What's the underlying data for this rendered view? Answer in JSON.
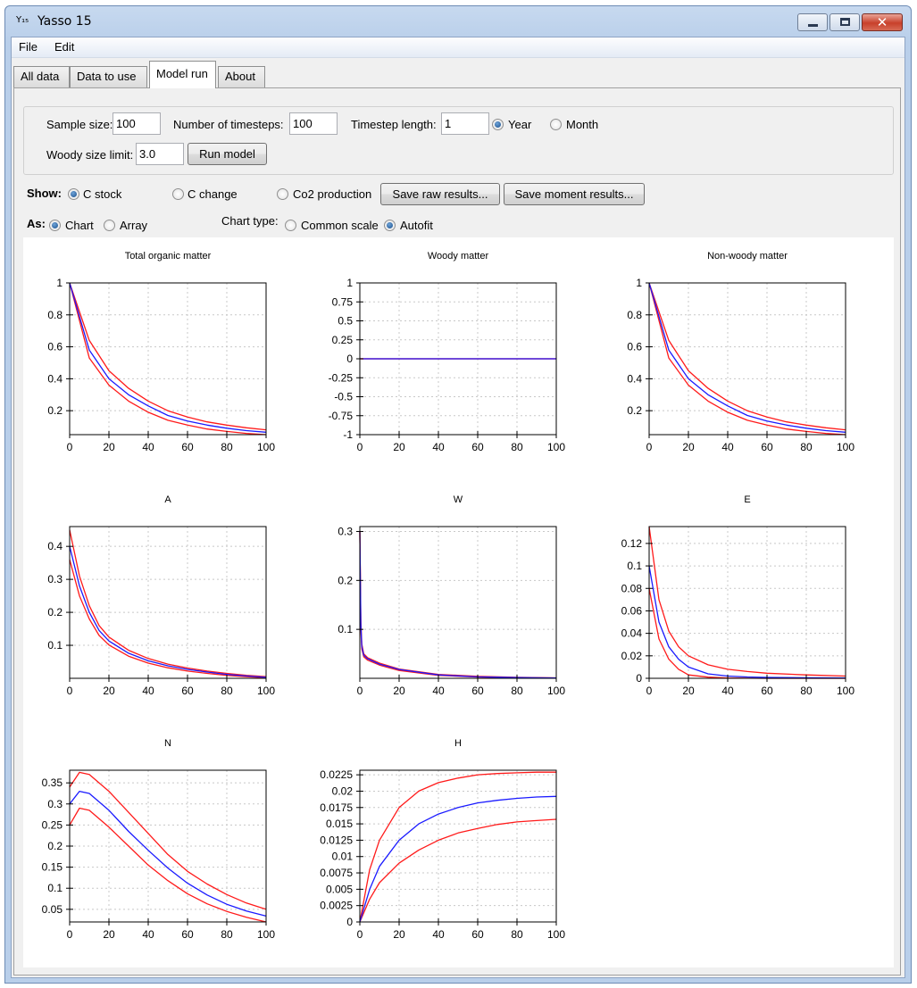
{
  "window": {
    "title": "Yasso 15",
    "app_icon_text": "Y₁₅"
  },
  "menu": [
    "File",
    "Edit"
  ],
  "tabs": [
    "All data",
    "Data to use",
    "Model run",
    "About"
  ],
  "active_tab": "Model run",
  "params": {
    "sample_size_label": "Sample size:",
    "sample_size": "100",
    "timesteps_label": "Number of timesteps:",
    "timesteps": "100",
    "timestep_length_label": "Timestep length:",
    "timestep_length": "1",
    "year_label": "Year",
    "month_label": "Month",
    "woody_label": "Woody size limit:",
    "woody": "3.0",
    "run_button": "Run model"
  },
  "show": {
    "label": "Show:",
    "c_stock": "C stock",
    "c_change": "C change",
    "co2": "Co2 production",
    "save_raw": "Save raw results...",
    "save_moment": "Save moment results..."
  },
  "as": {
    "label": "As:",
    "chart": "Chart",
    "array": "Array",
    "chart_type_label": "Chart type:",
    "common_scale": "Common scale",
    "autofit": "Autofit"
  },
  "colors": {
    "mean": "#1a1aff",
    "bounds": "#ff1a1a"
  },
  "chart_data": [
    {
      "type": "line",
      "title": "Total organic matter",
      "xlim": [
        0,
        100
      ],
      "xticks": [
        0,
        20,
        40,
        60,
        80,
        100
      ],
      "ylim": [
        0.05,
        1
      ],
      "yticks": [
        1,
        0.8,
        0.6,
        0.4,
        0.2
      ],
      "yticklabels": [
        "1",
        "0.8",
        "0.6",
        "0.4",
        "0.2"
      ],
      "x": [
        0,
        10,
        20,
        30,
        40,
        50,
        60,
        70,
        80,
        90,
        100
      ],
      "series": [
        {
          "role": "upper",
          "values": [
            1,
            0.64,
            0.45,
            0.34,
            0.26,
            0.2,
            0.16,
            0.13,
            0.11,
            0.093,
            0.08
          ]
        },
        {
          "role": "mean",
          "values": [
            1,
            0.58,
            0.4,
            0.3,
            0.23,
            0.17,
            0.135,
            0.11,
            0.09,
            0.075,
            0.065
          ]
        },
        {
          "role": "lower",
          "values": [
            1,
            0.53,
            0.36,
            0.26,
            0.19,
            0.14,
            0.11,
            0.085,
            0.07,
            0.058,
            0.05
          ]
        }
      ]
    },
    {
      "type": "line",
      "title": "Woody matter",
      "xlim": [
        0,
        100
      ],
      "xticks": [
        0,
        20,
        40,
        60,
        80,
        100
      ],
      "ylim": [
        -1,
        1
      ],
      "yticks": [
        1,
        0.75,
        0.5,
        0.25,
        0,
        -0.25,
        -0.5,
        -0.75,
        -1
      ],
      "yticklabels": [
        "1",
        "0.75",
        "0.5",
        "0.25",
        "0",
        "-0.25",
        "-0.5",
        "-0.75",
        "-1"
      ],
      "x": [
        0,
        100
      ],
      "series": [
        {
          "role": "upper",
          "values": [
            0,
            0
          ]
        },
        {
          "role": "mean",
          "values": [
            0,
            0
          ]
        },
        {
          "role": "lower",
          "values": [
            0,
            0
          ]
        }
      ]
    },
    {
      "type": "line",
      "title": "Non-woody matter",
      "xlim": [
        0,
        100
      ],
      "xticks": [
        0,
        20,
        40,
        60,
        80,
        100
      ],
      "ylim": [
        0.05,
        1
      ],
      "yticks": [
        1,
        0.8,
        0.6,
        0.4,
        0.2
      ],
      "yticklabels": [
        "1",
        "0.8",
        "0.6",
        "0.4",
        "0.2"
      ],
      "x": [
        0,
        10,
        20,
        30,
        40,
        50,
        60,
        70,
        80,
        90,
        100
      ],
      "series": [
        {
          "role": "upper",
          "values": [
            1,
            0.64,
            0.45,
            0.34,
            0.26,
            0.2,
            0.16,
            0.13,
            0.11,
            0.093,
            0.08
          ]
        },
        {
          "role": "mean",
          "values": [
            1,
            0.58,
            0.4,
            0.3,
            0.23,
            0.17,
            0.135,
            0.11,
            0.09,
            0.075,
            0.065
          ]
        },
        {
          "role": "lower",
          "values": [
            1,
            0.53,
            0.36,
            0.26,
            0.19,
            0.14,
            0.11,
            0.085,
            0.07,
            0.058,
            0.05
          ]
        }
      ]
    },
    {
      "type": "line",
      "title": "A",
      "xlim": [
        0,
        100
      ],
      "xticks": [
        0,
        20,
        40,
        60,
        80,
        100
      ],
      "ylim": [
        0,
        0.46
      ],
      "yticks": [
        0.4,
        0.3,
        0.2,
        0.1
      ],
      "yticklabels": [
        "0.4",
        "0.3",
        "0.2",
        "0.1"
      ],
      "x": [
        0,
        5,
        10,
        15,
        20,
        30,
        40,
        50,
        60,
        70,
        80,
        90,
        100
      ],
      "series": [
        {
          "role": "upper",
          "values": [
            0.45,
            0.31,
            0.22,
            0.16,
            0.125,
            0.085,
            0.06,
            0.043,
            0.031,
            0.022,
            0.015,
            0.009,
            0.005
          ]
        },
        {
          "role": "mean",
          "values": [
            0.4,
            0.28,
            0.2,
            0.145,
            0.113,
            0.076,
            0.053,
            0.038,
            0.027,
            0.019,
            0.012,
            0.007,
            0.003
          ]
        },
        {
          "role": "lower",
          "values": [
            0.36,
            0.25,
            0.18,
            0.13,
            0.101,
            0.067,
            0.046,
            0.032,
            0.022,
            0.015,
            0.009,
            0.005,
            0.002
          ]
        }
      ]
    },
    {
      "type": "line",
      "title": "W",
      "xlim": [
        0,
        100
      ],
      "xticks": [
        0,
        20,
        40,
        60,
        80,
        100
      ],
      "ylim": [
        0,
        0.31
      ],
      "yticks": [
        0.3,
        0.2,
        0.1
      ],
      "yticklabels": [
        "0.3",
        "0.2",
        "0.1"
      ],
      "x": [
        0,
        0.5,
        1,
        2,
        4,
        10,
        20,
        40,
        60,
        80,
        100
      ],
      "series": [
        {
          "role": "upper",
          "values": [
            0.3,
            0.12,
            0.07,
            0.05,
            0.042,
            0.031,
            0.019,
            0.008,
            0.004,
            0.002,
            0.001
          ]
        },
        {
          "role": "mean",
          "values": [
            0.3,
            0.11,
            0.065,
            0.047,
            0.04,
            0.029,
            0.018,
            0.007,
            0.003,
            0.0015,
            0.0008
          ]
        },
        {
          "role": "lower",
          "values": [
            0.3,
            0.1,
            0.06,
            0.044,
            0.037,
            0.027,
            0.016,
            0.006,
            0.0025,
            0.001,
            0.0005
          ]
        }
      ]
    },
    {
      "type": "line",
      "title": "E",
      "xlim": [
        0,
        100
      ],
      "xticks": [
        0,
        20,
        40,
        60,
        80,
        100
      ],
      "ylim": [
        0,
        0.135
      ],
      "yticks": [
        0.12,
        0.1,
        0.08,
        0.06,
        0.04,
        0.02,
        0
      ],
      "yticklabels": [
        "0.12",
        "0.1",
        "0.08",
        "0.06",
        "0.04",
        "0.02",
        "0"
      ],
      "x": [
        0,
        5,
        10,
        15,
        20,
        30,
        40,
        50,
        60,
        80,
        100
      ],
      "series": [
        {
          "role": "upper",
          "values": [
            0.135,
            0.07,
            0.042,
            0.028,
            0.02,
            0.012,
            0.008,
            0.006,
            0.0045,
            0.003,
            0.002
          ]
        },
        {
          "role": "mean",
          "values": [
            0.1,
            0.05,
            0.028,
            0.017,
            0.01,
            0.004,
            0.002,
            0.0012,
            0.0008,
            0.0005,
            0.0003
          ]
        },
        {
          "role": "lower",
          "values": [
            0.08,
            0.035,
            0.017,
            0.008,
            0.003,
            0.001,
            0.0003,
            0.0001,
            0,
            0,
            0
          ]
        }
      ]
    },
    {
      "type": "line",
      "title": "N",
      "xlim": [
        0,
        100
      ],
      "xticks": [
        0,
        20,
        40,
        60,
        80,
        100
      ],
      "ylim": [
        0.02,
        0.38
      ],
      "yticks": [
        0.35,
        0.3,
        0.25,
        0.2,
        0.15,
        0.1,
        0.05
      ],
      "yticklabels": [
        "0.35",
        "0.3",
        "0.25",
        "0.2",
        "0.15",
        "0.1",
        "0.05"
      ],
      "x": [
        0,
        5,
        10,
        20,
        30,
        40,
        50,
        60,
        70,
        80,
        90,
        100
      ],
      "series": [
        {
          "role": "upper",
          "values": [
            0.34,
            0.375,
            0.37,
            0.33,
            0.28,
            0.23,
            0.18,
            0.14,
            0.11,
            0.085,
            0.065,
            0.05
          ]
        },
        {
          "role": "mean",
          "values": [
            0.3,
            0.33,
            0.325,
            0.285,
            0.235,
            0.19,
            0.148,
            0.112,
            0.084,
            0.062,
            0.046,
            0.034
          ]
        },
        {
          "role": "lower",
          "values": [
            0.25,
            0.29,
            0.285,
            0.245,
            0.2,
            0.155,
            0.118,
            0.087,
            0.063,
            0.045,
            0.031,
            0.02
          ]
        }
      ]
    },
    {
      "type": "line",
      "title": "H",
      "xlim": [
        0,
        100
      ],
      "xticks": [
        0,
        20,
        40,
        60,
        80,
        100
      ],
      "ylim": [
        0,
        0.0232
      ],
      "yticks": [
        0.0225,
        0.02,
        0.0175,
        0.015,
        0.0125,
        0.01,
        0.0075,
        0.005,
        0.0025,
        0
      ],
      "yticklabels": [
        "0.0225",
        "0.02",
        "0.0175",
        "0.015",
        "0.0125",
        "0.01",
        "0.0075",
        "0.005",
        "0.0025",
        "0"
      ],
      "x": [
        0,
        5,
        10,
        20,
        30,
        40,
        50,
        60,
        70,
        80,
        90,
        100
      ],
      "series": [
        {
          "role": "upper",
          "values": [
            0,
            0.008,
            0.0125,
            0.0175,
            0.02,
            0.0213,
            0.022,
            0.0225,
            0.0227,
            0.0228,
            0.0229,
            0.0229
          ]
        },
        {
          "role": "mean",
          "values": [
            0,
            0.005,
            0.0085,
            0.0125,
            0.015,
            0.0165,
            0.0175,
            0.0182,
            0.0186,
            0.0189,
            0.0191,
            0.0192
          ]
        },
        {
          "role": "lower",
          "values": [
            0,
            0.0035,
            0.006,
            0.009,
            0.011,
            0.0125,
            0.0136,
            0.0143,
            0.0149,
            0.0153,
            0.0155,
            0.0157
          ]
        }
      ]
    }
  ]
}
